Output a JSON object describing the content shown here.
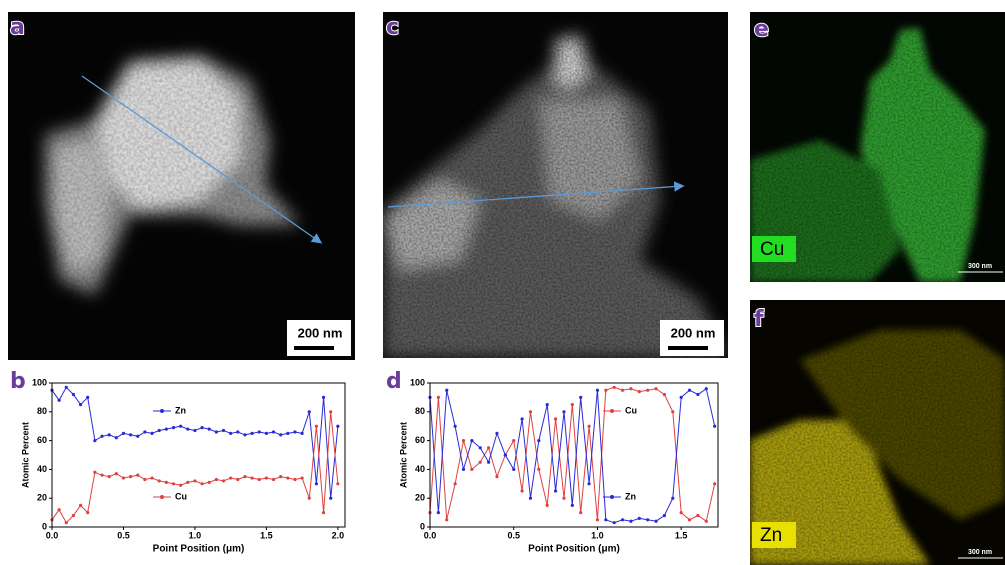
{
  "panel_labels": [
    "a",
    "b",
    "c",
    "d",
    "e",
    "f"
  ],
  "scale_bars": [
    "200 nm",
    "200 nm",
    "300 nm",
    "300 nm"
  ],
  "element_labels": [
    "Cu",
    "Zn"
  ],
  "chart_data": [
    {
      "type": "line",
      "xlabel": "Point Position (μm)",
      "ylabel": "Atomic Percent",
      "xlim": [
        0,
        2.05
      ],
      "ylim": [
        0,
        100
      ],
      "xticks": [
        {
          "value": 0,
          "label": "0.0"
        },
        {
          "value": 0.5,
          "label": "0.5"
        },
        {
          "value": 1,
          "label": "1.0"
        },
        {
          "value": 1.5,
          "label": "1.5"
        },
        {
          "value": 2,
          "label": "2.0"
        }
      ],
      "yticks": [
        0,
        20,
        40,
        60,
        80,
        100
      ],
      "x": [
        0,
        0.05,
        0.1,
        0.15,
        0.2,
        0.25,
        0.3,
        0.35,
        0.4,
        0.45,
        0.5,
        0.55,
        0.6,
        0.65,
        0.7,
        0.75,
        0.8,
        0.85,
        0.9,
        0.95,
        1,
        1.05,
        1.1,
        1.15,
        1.2,
        1.25,
        1.3,
        1.35,
        1.4,
        1.45,
        1.5,
        1.55,
        1.6,
        1.65,
        1.7,
        1.75,
        1.8,
        1.85,
        1.9,
        1.95,
        2
      ],
      "series": [
        {
          "name": "Zn",
          "color": "#2a2ad8",
          "values": [
            95,
            88,
            97,
            92,
            85,
            90,
            60,
            63,
            64,
            62,
            65,
            64,
            63,
            66,
            65,
            67,
            68,
            69,
            70,
            68,
            67,
            69,
            68,
            66,
            67,
            65,
            66,
            64,
            65,
            66,
            65,
            66,
            64,
            65,
            66,
            65,
            80,
            30,
            90,
            20,
            70
          ]
        },
        {
          "name": "Cu",
          "color": "#e04040",
          "values": [
            5,
            12,
            3,
            8,
            15,
            10,
            38,
            36,
            35,
            37,
            34,
            35,
            36,
            33,
            34,
            32,
            31,
            30,
            29,
            31,
            32,
            30,
            31,
            33,
            32,
            34,
            33,
            35,
            34,
            33,
            34,
            33,
            35,
            34,
            33,
            34,
            20,
            70,
            10,
            80,
            30
          ]
        }
      ]
    },
    {
      "type": "line",
      "xlabel": "Point Position (μm)",
      "ylabel": "Atomic Percent",
      "xlim": [
        0,
        1.72
      ],
      "ylim": [
        0,
        100
      ],
      "xticks": [
        {
          "value": 0,
          "label": "0.0"
        },
        {
          "value": 0.5,
          "label": "0.5"
        },
        {
          "value": 1,
          "label": "1.0"
        },
        {
          "value": 1.5,
          "label": "1.5"
        }
      ],
      "yticks": [
        0,
        20,
        40,
        60,
        80,
        100
      ],
      "x": [
        0,
        0.05,
        0.1,
        0.15,
        0.2,
        0.25,
        0.3,
        0.35,
        0.4,
        0.45,
        0.5,
        0.55,
        0.6,
        0.65,
        0.7,
        0.75,
        0.8,
        0.85,
        0.9,
        0.95,
        1,
        1.05,
        1.1,
        1.15,
        1.2,
        1.25,
        1.3,
        1.35,
        1.4,
        1.45,
        1.5,
        1.55,
        1.6,
        1.65,
        1.7
      ],
      "series": [
        {
          "name": "Cu",
          "color": "#e04040",
          "values": [
            10,
            90,
            5,
            30,
            60,
            40,
            45,
            55,
            35,
            50,
            60,
            25,
            80,
            40,
            15,
            75,
            20,
            85,
            10,
            70,
            5,
            95,
            97,
            95,
            96,
            94,
            95,
            96,
            92,
            80,
            10,
            5,
            8,
            4,
            30
          ]
        },
        {
          "name": "Zn",
          "color": "#2a2ad8",
          "values": [
            90,
            10,
            95,
            70,
            40,
            60,
            55,
            45,
            65,
            50,
            40,
            75,
            20,
            60,
            85,
            25,
            80,
            15,
            90,
            30,
            95,
            5,
            3,
            5,
            4,
            6,
            5,
            4,
            8,
            20,
            90,
            95,
            92,
            96,
            70
          ]
        }
      ]
    }
  ]
}
